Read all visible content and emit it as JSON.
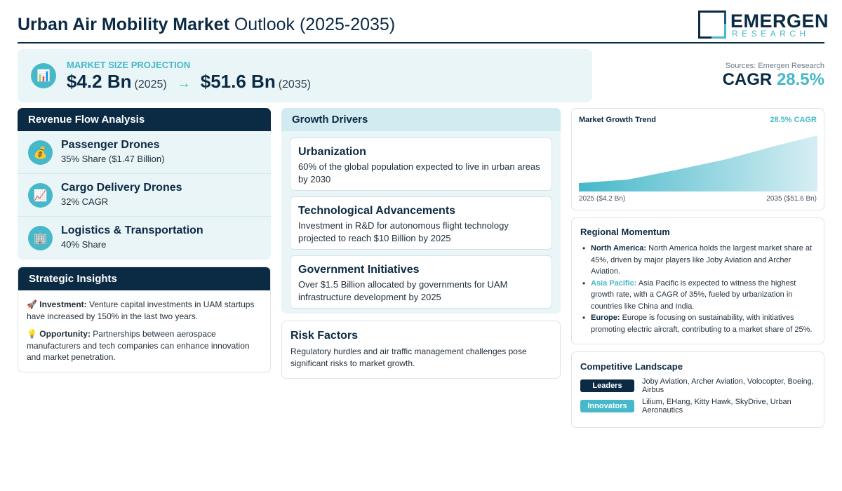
{
  "header": {
    "title_bold": "Urban Air Mobility Market",
    "title_rest": " Outlook (2025-2035)",
    "logo_word": "EMERGEN",
    "logo_sub": "RESEARCH"
  },
  "projection": {
    "label": "MARKET SIZE PROJECTION",
    "icon": "bar-chart-icon",
    "start_value": "$4.2 Bn",
    "start_year": "(2025)",
    "arrow": "→",
    "end_value": "$51.6 Bn",
    "end_year": "(2035)"
  },
  "summary": {
    "sources": "Sources: Emergen Research",
    "cagr_label": "CAGR ",
    "cagr_value": "28.5%"
  },
  "revenue": {
    "title": "Revenue Flow Analysis",
    "items": [
      {
        "icon": "money-bag-icon",
        "glyph": "💰",
        "name": "Passenger Drones",
        "sub": "35% Share ($1.47 Billion)"
      },
      {
        "icon": "chart-up-icon",
        "glyph": "📈",
        "name": "Cargo Delivery Drones",
        "sub": "32% CAGR"
      },
      {
        "icon": "building-icon",
        "glyph": "🏢",
        "name": "Logistics & Transportation",
        "sub": "40% Share"
      }
    ]
  },
  "insights": {
    "title": "Strategic Insights",
    "items": [
      {
        "glyph": "🚀",
        "label": "Investment:",
        "text": " Venture capital investments in UAM startups have increased by 150% in the last two years."
      },
      {
        "glyph": "💡",
        "label": "Opportunity:",
        "text": " Partnerships between aerospace manufacturers and tech companies can enhance innovation and market penetration."
      }
    ]
  },
  "drivers": {
    "title": "Growth Drivers",
    "items": [
      {
        "title": "Urbanization",
        "desc": "60% of the global population expected to live in urban areas by 2030"
      },
      {
        "title": "Technological Advancements",
        "desc": "Investment in R&D for autonomous flight technology projected to reach $10 Billion by 2025"
      },
      {
        "title": "Government Initiatives",
        "desc": "Over $1.5 Billion allocated by governments for UAM infrastructure development by 2025"
      }
    ]
  },
  "risk": {
    "title": "Risk Factors",
    "desc": "Regulatory hurdles and air traffic management challenges pose significant risks to market growth."
  },
  "trend": {
    "title": "Market Growth Trend",
    "cagr": "28.5% CAGR",
    "start_label": "2025 ($4.2 Bn)",
    "end_label": "2035 ($51.6 Bn)"
  },
  "regional": {
    "title": "Regional Momentum",
    "items": [
      {
        "region": "North America:",
        "text": " North America holds the largest market share at 45%, driven by major players like Joby Aviation and Archer Aviation."
      },
      {
        "region": "Asia Pacific:",
        "text": " Asia Pacific is expected to witness the highest growth rate, with a CAGR of 35%, fueled by urbanization in countries like China and India."
      },
      {
        "region": "Europe:",
        "text": " Europe is focusing on sustainability, with initiatives promoting electric aircraft, contributing to a market share of 25%."
      }
    ]
  },
  "competitive": {
    "title": "Competitive Landscape",
    "rows": [
      {
        "tag": "Leaders",
        "text": "Joby Aviation, Archer Aviation, Volocopter, Boeing, Airbus"
      },
      {
        "tag": "Innovators",
        "text": "Lilium, EHang, Kitty Hawk, SkyDrive, Urban Aeronautics"
      }
    ]
  },
  "colors": {
    "navy": "#0b2a44",
    "teal": "#45b8c9",
    "panel_bg": "#eaf5f8"
  }
}
